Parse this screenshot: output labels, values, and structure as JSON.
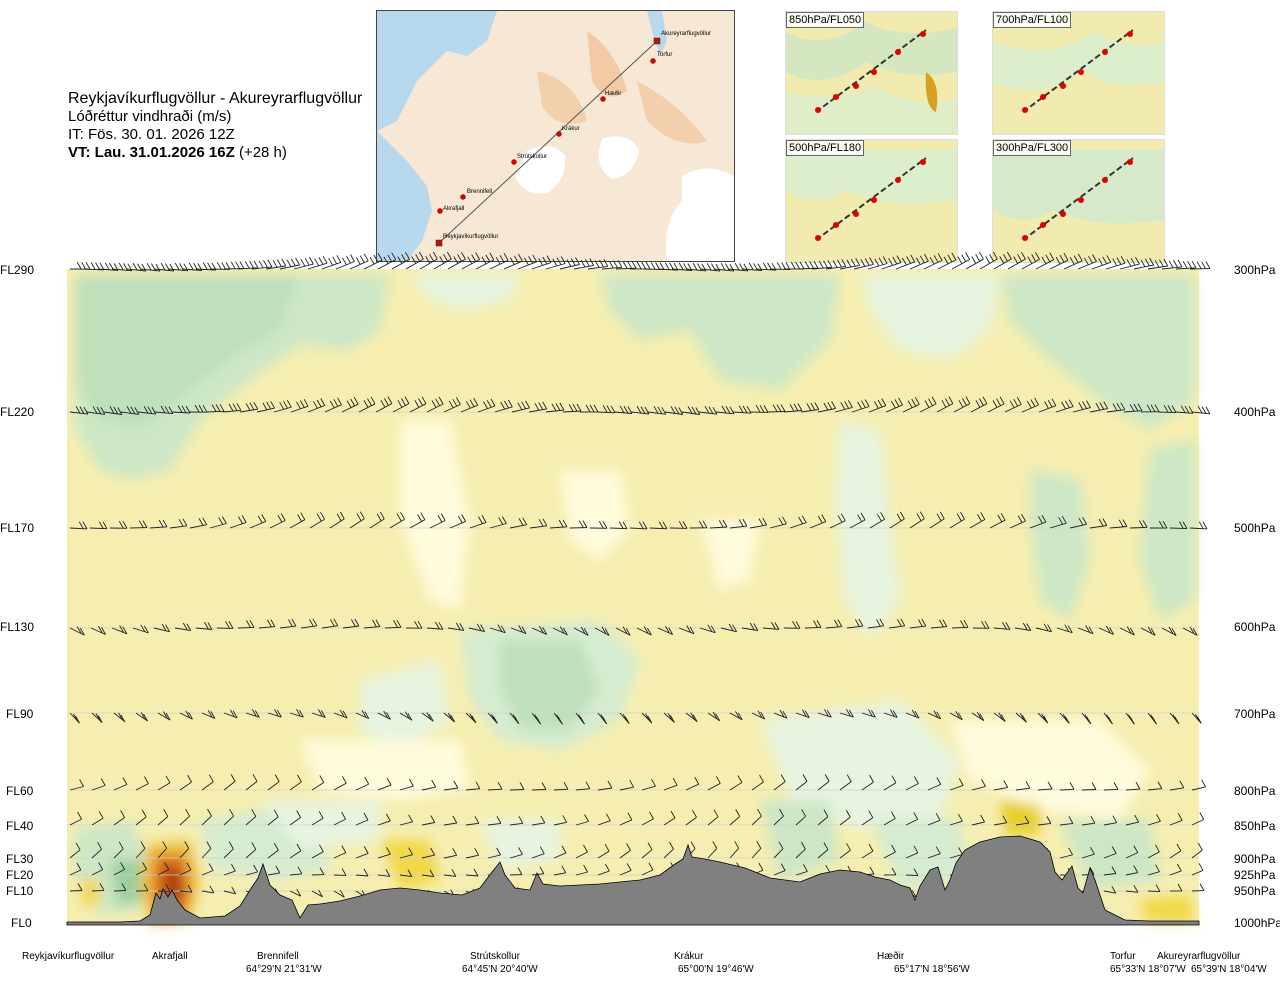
{
  "header": {
    "route": "Reykjavíkurflugvöllur - Akureyrarflugvöllur",
    "quantity": "Lóðréttur vindhraði (m/s)",
    "it": "IT: Fös. 30. 01. 2026 12Z",
    "vt_bold": "VT: Lau. 31.01.2026 16Z",
    "vt_rest": "(+28 h)"
  },
  "map": {
    "waypoints": [
      "Akureyrarflugvöllur",
      "Torfur",
      "Hæðir",
      "Krákur",
      "Strútskollur",
      "Brennifell",
      "Akrafjall",
      "Reykjavíkurflugvöllur"
    ]
  },
  "panels": [
    {
      "label": "850hPa/FL050"
    },
    {
      "label": "700hPa/FL100"
    },
    {
      "label": "500hPa/FL180"
    },
    {
      "label": "300hPa/FL300"
    }
  ],
  "chart_data": {
    "type": "heatmap",
    "colors": {
      "terrain": "#808080",
      "downdraft_strong": "#a8d4a8",
      "downdraft_weak": "#e8f6e4",
      "neutral": "#fffbdc",
      "updraft_weak": "#f3eca8",
      "updraft_strong": "#e0c020",
      "updraft_extreme": "#c84a10"
    },
    "flight_levels": [
      {
        "fl": "FL290",
        "hpa": "300hPa"
      },
      {
        "fl": "FL220",
        "hpa": "400hPa"
      },
      {
        "fl": "FL170",
        "hpa": "500hPa"
      },
      {
        "fl": "FL130",
        "hpa": "600hPa"
      },
      {
        "fl": "FL90",
        "hpa": "700hPa"
      },
      {
        "fl": "FL60",
        "hpa": "800hPa"
      },
      {
        "fl": "FL40",
        "hpa": "850hPa"
      },
      {
        "fl": "FL30",
        "hpa": "900hPa"
      },
      {
        "fl": "FL20",
        "hpa": "925hPa"
      },
      {
        "fl": "FL10",
        "hpa": "950hPa"
      },
      {
        "fl": "FL0",
        "hpa": "1000hPa"
      }
    ],
    "waypoints": [
      {
        "name": "Reykjavíkurflugvöllur",
        "coord": ""
      },
      {
        "name": "Akrafjall",
        "coord": ""
      },
      {
        "name": "Brennifell",
        "coord": "64°29'N 21°31'W"
      },
      {
        "name": "Strútskollur",
        "coord": "64°45'N 20°40'W"
      },
      {
        "name": "Krákur",
        "coord": "65°00'N 19°46'W"
      },
      {
        "name": "Hæðir",
        "coord": "65°17'N 18°56'W"
      },
      {
        "name": "Torfur",
        "coord": "65°33'N 18°07'W"
      },
      {
        "name": "Akureyrarflugvöllur",
        "coord": "65°39'N 18°04'W"
      }
    ],
    "grid": true
  }
}
